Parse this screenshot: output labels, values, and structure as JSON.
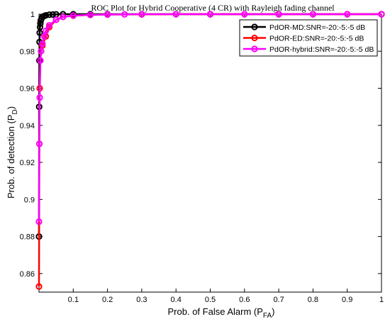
{
  "chart_data": {
    "type": "line",
    "title": "ROC Plot for Hybrid Cooperative (4 CR) with Rayleigh fading channel",
    "xlabel": "Prob. of False Alarm (P",
    "xlabel_sub": "FA",
    "xlabel_close": ")",
    "ylabel": "Prob. of detection (P",
    "ylabel_sub": "D",
    "ylabel_close": ")",
    "xlim": [
      0,
      1
    ],
    "ylim": [
      0.85,
      1
    ],
    "xticks": [
      0.1,
      0.2,
      0.3,
      0.4,
      0.5,
      0.6,
      0.7,
      0.8,
      0.9,
      1
    ],
    "xtick_labels": [
      "0.1",
      "0.2",
      "0.3",
      "0.4",
      "0.5",
      "0.6",
      "0.7",
      "0.8",
      "0.9",
      "1"
    ],
    "yticks": [
      0.86,
      0.88,
      0.9,
      0.92,
      0.94,
      0.96,
      0.98,
      1
    ],
    "ytick_labels": [
      "0.86",
      "0.88",
      "0.9",
      "0.92",
      "0.94",
      "0.96",
      "0.98",
      "1"
    ],
    "grid": false,
    "legend_position": "top-right",
    "series": [
      {
        "name": "PdOR-MD:SNR=-20:-5:-5 dB",
        "color": "#000000",
        "marker": "circle",
        "x": [
          0,
          0.0005,
          0.001,
          0.0015,
          0.002,
          0.003,
          0.004,
          0.005,
          0.007,
          0.01,
          0.015,
          0.02,
          0.03,
          0.04,
          0.05,
          0.07,
          0.1,
          0.15,
          0.2,
          0.3,
          0.5,
          0.7,
          1.0
        ],
        "y": [
          0.88,
          0.95,
          0.975,
          0.985,
          0.99,
          0.993,
          0.995,
          0.9965,
          0.9975,
          0.9985,
          0.999,
          0.9994,
          0.9997,
          0.9998,
          0.9999,
          1,
          1,
          1,
          1,
          1,
          1,
          1,
          1
        ]
      },
      {
        "name": "PdOR-ED:SNR=-20:-5:-5 dB",
        "color": "#ff0000",
        "marker": "circle",
        "x": [
          0,
          0.001,
          0.002,
          0.004,
          0.006,
          0.01,
          0.02,
          0.03,
          0.05,
          0.07,
          0.1,
          0.15,
          0.2,
          0.3,
          0.4,
          0.5,
          0.6,
          0.7,
          0.8,
          0.9,
          1.0
        ],
        "y": [
          0.853,
          0.93,
          0.96,
          0.975,
          0.98,
          0.983,
          0.988,
          0.993,
          0.997,
          0.9985,
          0.9992,
          0.9996,
          0.9998,
          0.9999,
          1,
          1,
          1,
          1,
          1,
          1,
          1
        ]
      },
      {
        "name": "PdOR-hybrid:SNR=-20:-5:-5 dB",
        "color": "#ff00ff",
        "marker": "circle",
        "x": [
          0,
          0.001,
          0.002,
          0.004,
          0.006,
          0.01,
          0.015,
          0.02,
          0.03,
          0.05,
          0.07,
          0.1,
          0.15,
          0.2,
          0.25,
          0.3,
          0.4,
          0.5,
          0.6,
          0.7,
          0.8,
          0.9,
          1.0
        ],
        "y": [
          0.888,
          0.93,
          0.955,
          0.975,
          0.98,
          0.984,
          0.988,
          0.991,
          0.994,
          0.997,
          0.9985,
          0.9993,
          0.9996,
          0.9998,
          0.9999,
          1,
          1,
          1,
          1,
          1,
          1,
          1,
          1
        ]
      }
    ]
  }
}
